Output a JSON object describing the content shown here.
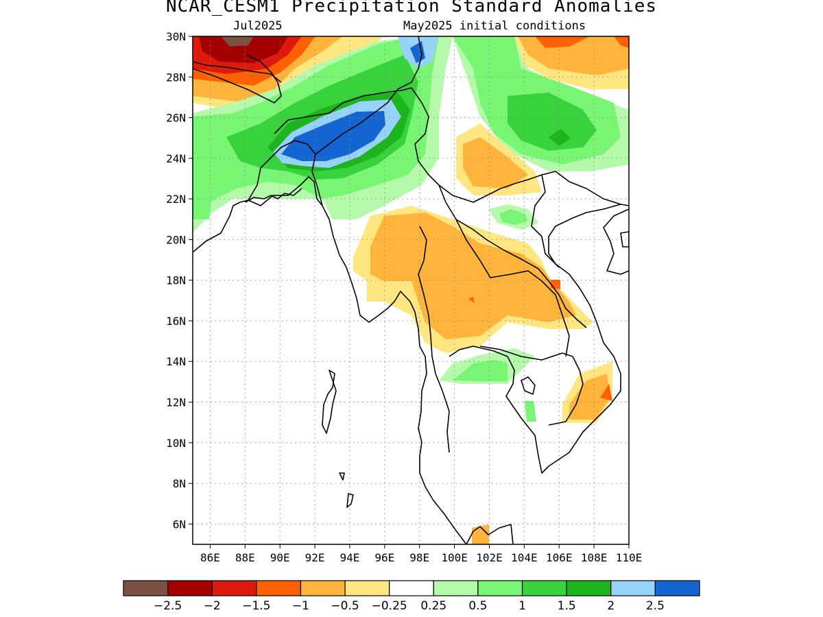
{
  "title": "NCAR_CESM1 Precipitation Standard Anomalies",
  "subtitle_left": "Jul2025",
  "subtitle_right": "May2025 initial conditions",
  "map": {
    "lon_range": [
      85,
      110
    ],
    "lat_range": [
      5,
      30
    ],
    "lon_ticks": [
      "86E",
      "88E",
      "90E",
      "92E",
      "94E",
      "96E",
      "98E",
      "100E",
      "102E",
      "104E",
      "106E",
      "108E",
      "110E"
    ],
    "lat_ticks": [
      "30N",
      "28N",
      "26N",
      "24N",
      "22N",
      "20N",
      "18N",
      "16N",
      "14N",
      "12N",
      "10N",
      "8N",
      "6N"
    ],
    "grid": "dotted"
  },
  "colorbar": {
    "colors": [
      "#7b5144",
      "#a50000",
      "#dd1a0e",
      "#ff6000",
      "#ffb43c",
      "#ffe680",
      "#ffffff",
      "#b4faaa",
      "#78f573",
      "#37d23c",
      "#1eb41e",
      "#96d2fa",
      "#1464d2"
    ],
    "labels": [
      "−2.5",
      "−2",
      "−1.5",
      "−1",
      "−0.5",
      "−0.25",
      "0.25",
      "0.5",
      "1",
      "1.5",
      "2",
      "2.5"
    ]
  },
  "anomaly_regions": [
    {
      "name": "tibet-nepal-dry",
      "level": "-2.5 to -0.5"
    },
    {
      "name": "bangladesh-northeast-india-wet",
      "level": "0.25 to 2.5"
    },
    {
      "name": "south-china-wet",
      "level": "0.25 to 2"
    },
    {
      "name": "thailand-laos-dry",
      "level": "-1 to -0.25"
    },
    {
      "name": "south-vietnam-dry",
      "level": "-1.5 to -0.25"
    }
  ]
}
